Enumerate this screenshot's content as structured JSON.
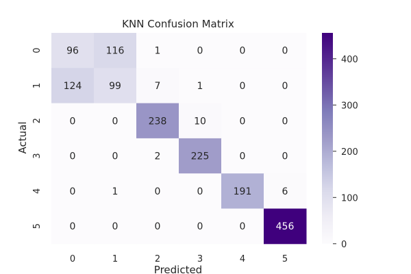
{
  "chart_data": {
    "type": "heatmap",
    "title": "KNN Confusion Matrix",
    "xlabel": "Predicted",
    "ylabel": "Actual",
    "x_categories": [
      "0",
      "1",
      "2",
      "3",
      "4",
      "5"
    ],
    "y_categories": [
      "0",
      "1",
      "2",
      "3",
      "4",
      "5"
    ],
    "values": [
      [
        96,
        116,
        1,
        0,
        0,
        0
      ],
      [
        124,
        99,
        7,
        1,
        0,
        0
      ],
      [
        0,
        0,
        238,
        10,
        0,
        0
      ],
      [
        0,
        0,
        2,
        225,
        0,
        0
      ],
      [
        0,
        1,
        0,
        0,
        191,
        6
      ],
      [
        0,
        0,
        0,
        0,
        0,
        456
      ]
    ],
    "colorbar": {
      "min": 0,
      "max": 456,
      "ticks": [
        0,
        100,
        200,
        300,
        400
      ],
      "colormap": "Purples",
      "colors": [
        "#fcfbfd",
        "#efedf5",
        "#dadaeb",
        "#bcbddc",
        "#9e9ac8",
        "#807dba",
        "#6a51a3",
        "#54278f",
        "#3f007d"
      ]
    },
    "grid": false
  }
}
